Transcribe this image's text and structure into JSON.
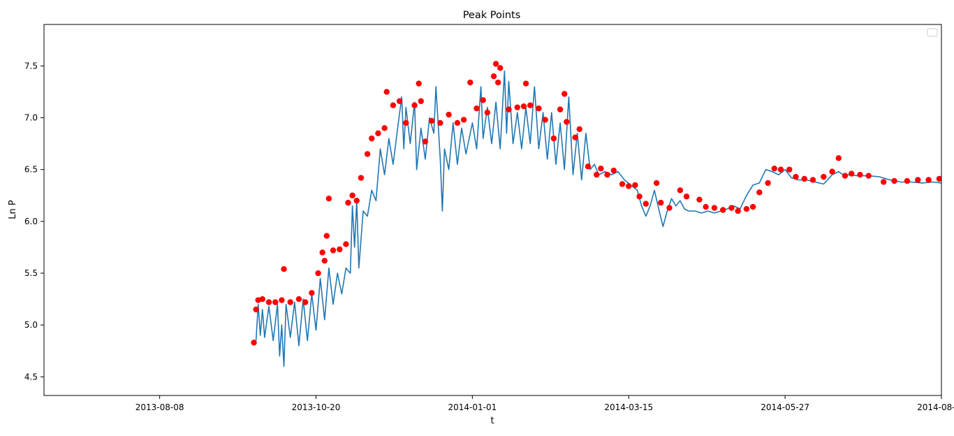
{
  "chart_data": {
    "type": "line",
    "title": "Peak Points",
    "xlabel": "t",
    "ylabel": "Ln P",
    "x_is_date": true,
    "xlim": [
      "2013-06-15",
      "2014-08-08"
    ],
    "ylim": [
      4.32,
      7.9
    ],
    "xticks": [
      "2013-08-08",
      "2013-10-20",
      "2014-01-01",
      "2014-03-15",
      "2014-05-27",
      "2014-08-08"
    ],
    "yticks": [
      4.5,
      5.0,
      5.5,
      6.0,
      6.5,
      7.0,
      7.5
    ],
    "ytick_labels": [
      "4.5",
      "5.0",
      "5.5",
      "6.0",
      "6.5",
      "7.0",
      "7.5"
    ],
    "legend": {
      "position": "top-right",
      "entries": []
    },
    "colors": {
      "line": "#1f77b4",
      "peaks": "#ff0000"
    },
    "series": [
      {
        "marker": "line",
        "points": [
          [
            "2013-09-22",
            4.85
          ],
          [
            "2013-09-23",
            5.2
          ],
          [
            "2013-09-24",
            4.9
          ],
          [
            "2013-09-25",
            5.15
          ],
          [
            "2013-09-26",
            4.88
          ],
          [
            "2013-09-28",
            5.18
          ],
          [
            "2013-09-30",
            4.85
          ],
          [
            "2013-10-02",
            5.2
          ],
          [
            "2013-10-03",
            4.7
          ],
          [
            "2013-10-04",
            5.0
          ],
          [
            "2013-10-05",
            4.6
          ],
          [
            "2013-10-06",
            5.2
          ],
          [
            "2013-10-08",
            4.88
          ],
          [
            "2013-10-10",
            5.22
          ],
          [
            "2013-10-12",
            4.8
          ],
          [
            "2013-10-14",
            5.25
          ],
          [
            "2013-10-16",
            4.85
          ],
          [
            "2013-10-18",
            5.3
          ],
          [
            "2013-10-20",
            4.95
          ],
          [
            "2013-10-22",
            5.45
          ],
          [
            "2013-10-24",
            5.05
          ],
          [
            "2013-10-26",
            5.55
          ],
          [
            "2013-10-28",
            5.2
          ],
          [
            "2013-10-30",
            5.5
          ],
          [
            "2013-11-01",
            5.3
          ],
          [
            "2013-11-03",
            5.55
          ],
          [
            "2013-11-05",
            5.5
          ],
          [
            "2013-11-06",
            6.15
          ],
          [
            "2013-11-07",
            5.75
          ],
          [
            "2013-11-08",
            6.2
          ],
          [
            "2013-11-09",
            5.55
          ],
          [
            "2013-11-11",
            6.1
          ],
          [
            "2013-11-13",
            6.05
          ],
          [
            "2013-11-15",
            6.3
          ],
          [
            "2013-11-17",
            6.2
          ],
          [
            "2013-11-19",
            6.7
          ],
          [
            "2013-11-21",
            6.45
          ],
          [
            "2013-11-23",
            6.8
          ],
          [
            "2013-11-25",
            6.55
          ],
          [
            "2013-11-27",
            6.88
          ],
          [
            "2013-11-29",
            7.2
          ],
          [
            "2013-11-30",
            6.7
          ],
          [
            "2013-12-01",
            7.1
          ],
          [
            "2013-12-03",
            6.75
          ],
          [
            "2013-12-05",
            7.15
          ],
          [
            "2013-12-06",
            6.5
          ],
          [
            "2013-12-08",
            6.9
          ],
          [
            "2013-12-10",
            6.6
          ],
          [
            "2013-12-12",
            7.0
          ],
          [
            "2013-12-14",
            6.85
          ],
          [
            "2013-12-15",
            7.3
          ],
          [
            "2013-12-17",
            6.6
          ],
          [
            "2013-12-18",
            6.1
          ],
          [
            "2013-12-19",
            6.7
          ],
          [
            "2013-12-21",
            6.5
          ],
          [
            "2013-12-23",
            6.95
          ],
          [
            "2013-12-25",
            6.55
          ],
          [
            "2013-12-27",
            6.9
          ],
          [
            "2013-12-29",
            6.65
          ],
          [
            "2014-01-01",
            6.95
          ],
          [
            "2014-01-03",
            6.7
          ],
          [
            "2014-01-05",
            7.3
          ],
          [
            "2014-01-06",
            6.8
          ],
          [
            "2014-01-08",
            7.1
          ],
          [
            "2014-01-10",
            6.75
          ],
          [
            "2014-01-12",
            7.15
          ],
          [
            "2014-01-14",
            6.7
          ],
          [
            "2014-01-16",
            7.45
          ],
          [
            "2014-01-17",
            6.85
          ],
          [
            "2014-01-18",
            7.35
          ],
          [
            "2014-01-20",
            6.75
          ],
          [
            "2014-01-22",
            7.05
          ],
          [
            "2014-01-24",
            6.7
          ],
          [
            "2014-01-26",
            7.1
          ],
          [
            "2014-01-28",
            6.75
          ],
          [
            "2014-01-30",
            7.3
          ],
          [
            "2014-02-01",
            6.7
          ],
          [
            "2014-02-03",
            7.05
          ],
          [
            "2014-02-05",
            6.6
          ],
          [
            "2014-02-07",
            7.05
          ],
          [
            "2014-02-09",
            6.55
          ],
          [
            "2014-02-11",
            6.95
          ],
          [
            "2014-02-13",
            6.5
          ],
          [
            "2014-02-15",
            7.2
          ],
          [
            "2014-02-17",
            6.45
          ],
          [
            "2014-02-19",
            6.85
          ],
          [
            "2014-02-21",
            6.4
          ],
          [
            "2014-02-23",
            6.85
          ],
          [
            "2014-02-25",
            6.5
          ],
          [
            "2014-02-27",
            6.55
          ],
          [
            "2014-03-01",
            6.45
          ],
          [
            "2014-03-04",
            6.48
          ],
          [
            "2014-03-07",
            6.45
          ],
          [
            "2014-03-10",
            6.48
          ],
          [
            "2014-03-13",
            6.4
          ],
          [
            "2014-03-16",
            6.35
          ],
          [
            "2014-03-19",
            6.3
          ],
          [
            "2014-03-21",
            6.15
          ],
          [
            "2014-03-23",
            6.05
          ],
          [
            "2014-03-25",
            6.15
          ],
          [
            "2014-03-27",
            6.3
          ],
          [
            "2014-03-29",
            6.12
          ],
          [
            "2014-03-31",
            5.95
          ],
          [
            "2014-04-02",
            6.1
          ],
          [
            "2014-04-04",
            6.22
          ],
          [
            "2014-04-06",
            6.15
          ],
          [
            "2014-04-08",
            6.2
          ],
          [
            "2014-04-10",
            6.12
          ],
          [
            "2014-04-12",
            6.1
          ],
          [
            "2014-04-15",
            6.1
          ],
          [
            "2014-04-18",
            6.08
          ],
          [
            "2014-04-21",
            6.1
          ],
          [
            "2014-04-24",
            6.08
          ],
          [
            "2014-04-27",
            6.1
          ],
          [
            "2014-04-30",
            6.12
          ],
          [
            "2014-05-03",
            6.15
          ],
          [
            "2014-05-06",
            6.12
          ],
          [
            "2014-05-09",
            6.25
          ],
          [
            "2014-05-12",
            6.35
          ],
          [
            "2014-05-15",
            6.37
          ],
          [
            "2014-05-18",
            6.5
          ],
          [
            "2014-05-21",
            6.48
          ],
          [
            "2014-05-24",
            6.45
          ],
          [
            "2014-05-27",
            6.5
          ],
          [
            "2014-05-30",
            6.42
          ],
          [
            "2014-06-02",
            6.4
          ],
          [
            "2014-06-06",
            6.4
          ],
          [
            "2014-06-10",
            6.38
          ],
          [
            "2014-06-14",
            6.36
          ],
          [
            "2014-06-18",
            6.45
          ],
          [
            "2014-06-21",
            6.48
          ],
          [
            "2014-06-23",
            6.45
          ],
          [
            "2014-06-26",
            6.45
          ],
          [
            "2014-06-30",
            6.44
          ],
          [
            "2014-07-05",
            6.44
          ],
          [
            "2014-07-10",
            6.43
          ],
          [
            "2014-07-15",
            6.4
          ],
          [
            "2014-07-20",
            6.38
          ],
          [
            "2014-07-25",
            6.38
          ],
          [
            "2014-07-30",
            6.37
          ],
          [
            "2014-08-04",
            6.38
          ],
          [
            "2014-08-08",
            6.37
          ]
        ]
      },
      {
        "marker": "scatter",
        "points": [
          [
            "2013-09-21",
            4.83
          ],
          [
            "2013-09-22",
            5.15
          ],
          [
            "2013-09-23",
            5.24
          ],
          [
            "2013-09-25",
            5.25
          ],
          [
            "2013-09-28",
            5.22
          ],
          [
            "2013-10-01",
            5.22
          ],
          [
            "2013-10-04",
            5.24
          ],
          [
            "2013-10-05",
            5.54
          ],
          [
            "2013-10-08",
            5.22
          ],
          [
            "2013-10-12",
            5.25
          ],
          [
            "2013-10-15",
            5.22
          ],
          [
            "2013-10-18",
            5.31
          ],
          [
            "2013-10-21",
            5.5
          ],
          [
            "2013-10-23",
            5.7
          ],
          [
            "2013-10-24",
            5.62
          ],
          [
            "2013-10-26",
            6.22
          ],
          [
            "2013-10-25",
            5.86
          ],
          [
            "2013-10-28",
            5.72
          ],
          [
            "2013-10-31",
            5.73
          ],
          [
            "2013-11-03",
            5.78
          ],
          [
            "2013-11-04",
            6.18
          ],
          [
            "2013-11-06",
            6.25
          ],
          [
            "2013-11-08",
            6.2
          ],
          [
            "2013-11-10",
            6.42
          ],
          [
            "2013-11-13",
            6.65
          ],
          [
            "2013-11-15",
            6.8
          ],
          [
            "2013-11-18",
            6.85
          ],
          [
            "2013-11-21",
            6.9
          ],
          [
            "2013-11-22",
            7.25
          ],
          [
            "2013-11-25",
            7.12
          ],
          [
            "2013-11-28",
            7.16
          ],
          [
            "2013-12-01",
            6.95
          ],
          [
            "2013-12-05",
            7.12
          ],
          [
            "2013-12-07",
            7.33
          ],
          [
            "2013-12-08",
            7.16
          ],
          [
            "2013-12-10",
            6.77
          ],
          [
            "2013-12-13",
            6.97
          ],
          [
            "2013-12-17",
            6.95
          ],
          [
            "2013-12-21",
            7.03
          ],
          [
            "2013-12-25",
            6.95
          ],
          [
            "2013-12-28",
            6.98
          ],
          [
            "2013-12-31",
            7.34
          ],
          [
            "2014-01-03",
            7.09
          ],
          [
            "2014-01-06",
            7.17
          ],
          [
            "2014-01-08",
            7.05
          ],
          [
            "2014-01-11",
            7.4
          ],
          [
            "2014-01-12",
            7.52
          ],
          [
            "2014-01-13",
            7.34
          ],
          [
            "2014-01-14",
            7.48
          ],
          [
            "2014-01-18",
            7.08
          ],
          [
            "2014-01-22",
            7.1
          ],
          [
            "2014-01-25",
            7.11
          ],
          [
            "2014-01-26",
            7.33
          ],
          [
            "2014-01-28",
            7.12
          ],
          [
            "2014-02-01",
            7.09
          ],
          [
            "2014-02-04",
            6.98
          ],
          [
            "2014-02-08",
            6.8
          ],
          [
            "2014-02-11",
            7.08
          ],
          [
            "2014-02-13",
            7.23
          ],
          [
            "2014-02-14",
            6.96
          ],
          [
            "2014-02-18",
            6.81
          ],
          [
            "2014-02-20",
            6.89
          ],
          [
            "2014-02-24",
            6.53
          ],
          [
            "2014-02-28",
            6.45
          ],
          [
            "2014-03-02",
            6.51
          ],
          [
            "2014-03-05",
            6.45
          ],
          [
            "2014-03-08",
            6.49
          ],
          [
            "2014-03-12",
            6.36
          ],
          [
            "2014-03-15",
            6.34
          ],
          [
            "2014-03-18",
            6.35
          ],
          [
            "2014-03-20",
            6.24
          ],
          [
            "2014-03-23",
            6.17
          ],
          [
            "2014-03-28",
            6.37
          ],
          [
            "2014-03-30",
            6.18
          ],
          [
            "2014-04-03",
            6.13
          ],
          [
            "2014-04-08",
            6.3
          ],
          [
            "2014-04-11",
            6.24
          ],
          [
            "2014-04-17",
            6.21
          ],
          [
            "2014-04-20",
            6.14
          ],
          [
            "2014-04-24",
            6.13
          ],
          [
            "2014-04-28",
            6.11
          ],
          [
            "2014-05-02",
            6.13
          ],
          [
            "2014-05-05",
            6.1
          ],
          [
            "2014-05-09",
            6.12
          ],
          [
            "2014-05-12",
            6.14
          ],
          [
            "2014-05-15",
            6.28
          ],
          [
            "2014-05-19",
            6.37
          ],
          [
            "2014-05-22",
            6.51
          ],
          [
            "2014-05-25",
            6.5
          ],
          [
            "2014-05-29",
            6.5
          ],
          [
            "2014-06-01",
            6.43
          ],
          [
            "2014-06-05",
            6.41
          ],
          [
            "2014-06-09",
            6.4
          ],
          [
            "2014-06-14",
            6.43
          ],
          [
            "2014-06-18",
            6.48
          ],
          [
            "2014-06-21",
            6.61
          ],
          [
            "2014-06-24",
            6.44
          ],
          [
            "2014-06-27",
            6.46
          ],
          [
            "2014-07-01",
            6.45
          ],
          [
            "2014-07-05",
            6.44
          ],
          [
            "2014-07-12",
            6.38
          ],
          [
            "2014-07-17",
            6.39
          ],
          [
            "2014-07-23",
            6.39
          ],
          [
            "2014-07-28",
            6.4
          ],
          [
            "2014-08-02",
            6.4
          ],
          [
            "2014-08-07",
            6.41
          ]
        ]
      }
    ]
  }
}
